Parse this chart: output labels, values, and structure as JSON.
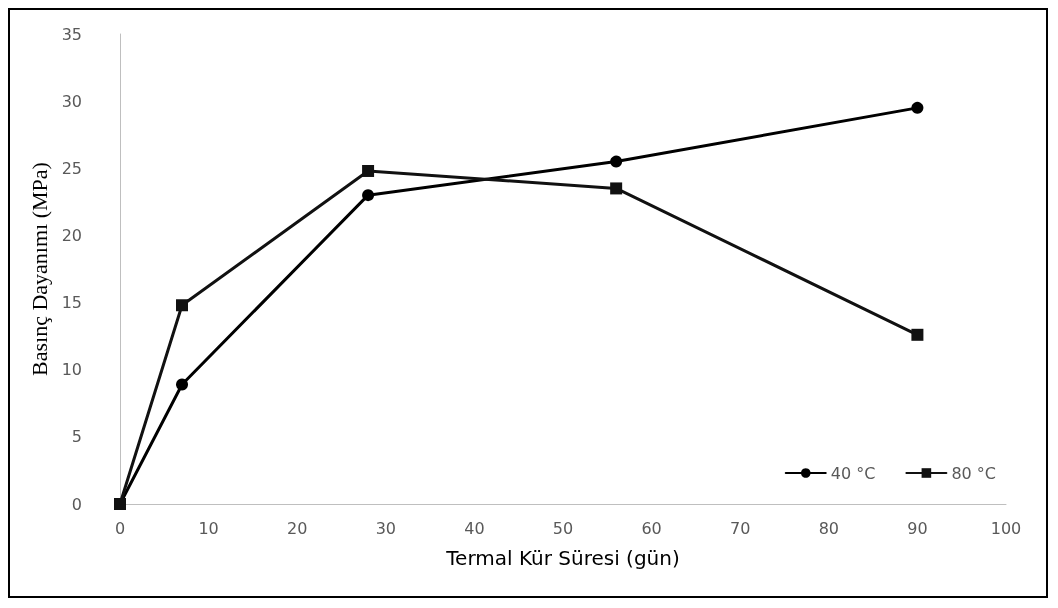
{
  "chart_data": {
    "type": "line",
    "xlabel": "Termal Kür Süresi (gün)",
    "ylabel": "Basınç Dayanımı (MPa)",
    "xlim": [
      0,
      100
    ],
    "xticks": [
      0,
      10,
      20,
      30,
      40,
      50,
      60,
      70,
      80,
      90,
      100
    ],
    "ylim": [
      0,
      35
    ],
    "yticks": [
      0,
      5,
      10,
      15,
      20,
      25,
      30,
      35
    ],
    "grid": false,
    "legend": "bottom right",
    "line_style": "solid",
    "series": [
      {
        "name": "40 °C",
        "color": "#000000",
        "marker": "circle",
        "x": [
          0,
          7,
          28,
          56,
          90
        ],
        "values": [
          0,
          8.9,
          23.0,
          25.5,
          29.5
        ]
      },
      {
        "name": "80 °C",
        "color": "#111111",
        "marker": "square",
        "x": [
          0,
          7,
          28,
          56,
          90
        ],
        "values": [
          0,
          14.8,
          24.8,
          23.5,
          12.6
        ]
      }
    ]
  }
}
